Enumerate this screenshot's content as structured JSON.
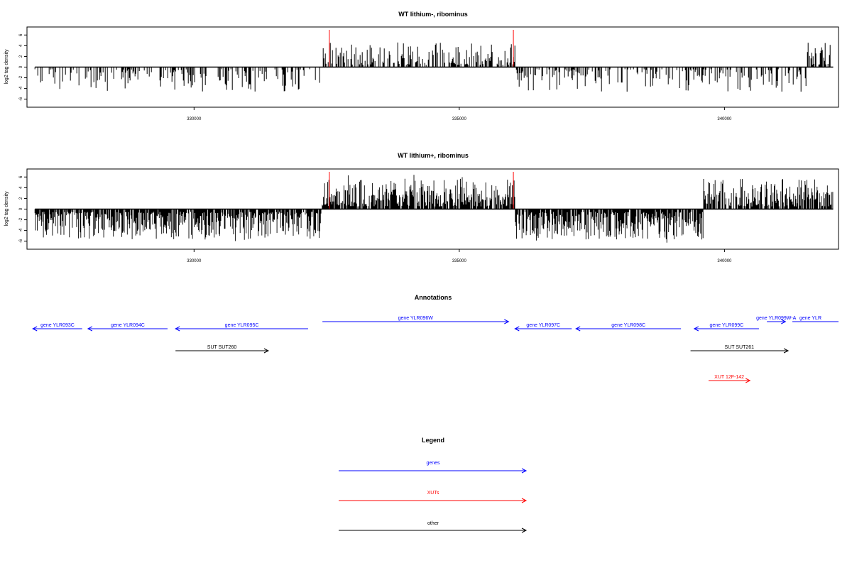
{
  "chart_data": [
    {
      "type": "bar",
      "title": "WT lithium-, ribominus",
      "ylabel": "log2 tag density",
      "xlabel": "",
      "xlim": [
        326850,
        342150
      ],
      "ylim": [
        -7.5,
        7.5
      ],
      "x_ticks": [
        "330000",
        "335000",
        "340000"
      ],
      "x_tick_values": [
        330000,
        335000,
        340000
      ],
      "y_ticks": [
        "-6",
        "-4",
        "-2",
        "0",
        "2",
        "4",
        "6"
      ],
      "y_tick_values": [
        -6,
        -4,
        -2,
        0,
        2,
        4,
        6
      ],
      "track_start": 327000,
      "track_end": 342050,
      "boundary_marks": [
        332550,
        336020
      ],
      "boundary_color": "#ff0000",
      "bar_color": "#000000",
      "density": "sparse",
      "segments": [
        {
          "from": 327000,
          "to": 332400,
          "sign": -1
        },
        {
          "from": 332400,
          "to": 336050,
          "sign": 1
        },
        {
          "from": 336050,
          "to": 341550,
          "sign": -1
        },
        {
          "from": 341550,
          "to": 342050,
          "sign": 1
        }
      ]
    },
    {
      "type": "bar",
      "title": "WT lithium+, ribominus",
      "ylabel": "log2 tag density",
      "xlabel": "",
      "xlim": [
        326850,
        342150
      ],
      "ylim": [
        -7.5,
        7.5
      ],
      "x_ticks": [
        "330000",
        "335000",
        "340000"
      ],
      "x_tick_values": [
        330000,
        335000,
        340000
      ],
      "y_ticks": [
        "-6",
        "-4",
        "-2",
        "0",
        "2",
        "4",
        "6"
      ],
      "y_tick_values": [
        -6,
        -4,
        -2,
        0,
        2,
        4,
        6
      ],
      "track_start": 327000,
      "track_end": 342050,
      "boundary_marks": [
        332550,
        336020
      ],
      "boundary_color": "#ff0000",
      "bar_color": "#000000",
      "density": "dense",
      "segments": [
        {
          "from": 327000,
          "to": 332400,
          "sign": -1
        },
        {
          "from": 332400,
          "to": 336050,
          "sign": 1
        },
        {
          "from": 336050,
          "to": 339600,
          "sign": -1
        },
        {
          "from": 339600,
          "to": 342050,
          "sign": 1
        }
      ]
    }
  ],
  "annotations": {
    "title": "Annotations",
    "xlim": [
      326850,
      342150
    ],
    "features": [
      {
        "label": "gene YLR093C",
        "start": 326960,
        "end": 327890,
        "strand": "-",
        "row": 0,
        "color": "#0000ff"
      },
      {
        "label": "gene YLR094C",
        "start": 328000,
        "end": 329500,
        "strand": "-",
        "row": 0,
        "color": "#0000ff"
      },
      {
        "label": "gene YLR095C",
        "start": 329650,
        "end": 332150,
        "strand": "-",
        "row": 0,
        "color": "#0000ff"
      },
      {
        "label": "gene YLR096W",
        "start": 332420,
        "end": 335930,
        "strand": "+",
        "row": 1,
        "color": "#0000ff"
      },
      {
        "label": "gene YLR097C",
        "start": 336050,
        "end": 337120,
        "strand": "-",
        "row": 0,
        "color": "#0000ff"
      },
      {
        "label": "gene YLR098C",
        "start": 337200,
        "end": 339180,
        "strand": "-",
        "row": 0,
        "color": "#0000ff"
      },
      {
        "label": "gene YLR099C",
        "start": 339430,
        "end": 340650,
        "strand": "-",
        "row": 0,
        "color": "#0000ff"
      },
      {
        "label": "gene YLR099W-A",
        "start": 340800,
        "end": 341150,
        "strand": "+",
        "row": 1,
        "color": "#0000ff"
      },
      {
        "label": "gene YLR",
        "start": 341280,
        "end": 342150,
        "strand": "+",
        "row": 1,
        "color": "#0000ff"
      },
      {
        "label": "SUT SUT260",
        "start": 329650,
        "end": 331400,
        "strand": "+",
        "row": 2,
        "color": "#000000"
      },
      {
        "label": "SUT SUT261",
        "start": 339360,
        "end": 341200,
        "strand": "+",
        "row": 2,
        "color": "#000000"
      },
      {
        "label": "XUT 12F-142",
        "start": 339700,
        "end": 340480,
        "strand": "+",
        "row": 3,
        "color": "#ff0000"
      }
    ]
  },
  "legend": {
    "title": "Legend",
    "items": [
      {
        "label": "genes",
        "color": "#0000ff"
      },
      {
        "label": "XUTs",
        "color": "#ff0000"
      },
      {
        "label": "other",
        "color": "#000000"
      }
    ]
  }
}
